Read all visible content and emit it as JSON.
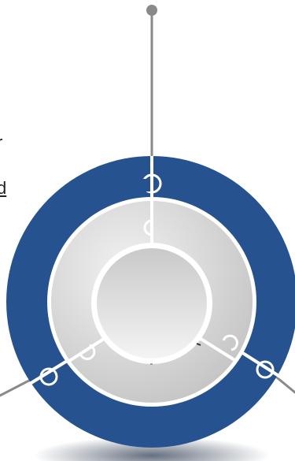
{
  "diagram": {
    "type": "concentric-puzzle-ring",
    "colors": {
      "outer_ring": "#26538f",
      "middle_ring_light": "#eeeeee",
      "middle_ring_dark": "#c4c4c4",
      "center_light": "#f0f0f0",
      "center_dark": "#c8c8c8",
      "connector": "#8a8a8a",
      "divider": "#ffffff",
      "shadow": "#555f6e"
    },
    "connectors": [
      "top-connector",
      "left-connector",
      "right-connector"
    ],
    "segments": 3,
    "clipped_text": {
      "upper": "r",
      "lower": "d"
    }
  }
}
